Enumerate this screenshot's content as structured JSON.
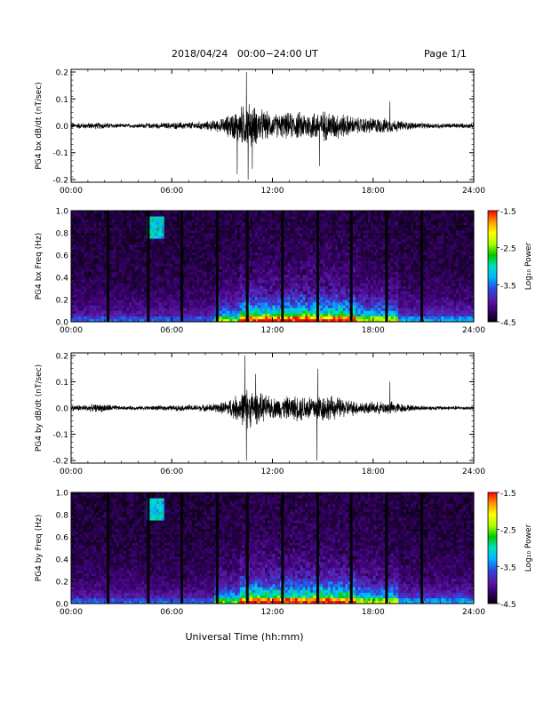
{
  "header": {
    "title": "2018/04/24   00:00−24:00 UT",
    "page": "Page 1/1"
  },
  "xlabel": "Universal Time (hh:mm)",
  "colors": {
    "trace": "#000000",
    "colormap": [
      "#000000",
      "#3a006e",
      "#5a1aa8",
      "#2a4be0",
      "#00b4ff",
      "#00e0c0",
      "#00c800",
      "#aaff00",
      "#ffff00",
      "#ff9900",
      "#ff0000"
    ]
  },
  "chart_data": [
    {
      "type": "line",
      "ylabel": "PG4 bx dB/dt (nT/sec)",
      "xlim": [
        0,
        24
      ],
      "ylim": [
        -0.21,
        0.21
      ],
      "yticks": [
        "-0.2",
        "-0.1",
        "0.0",
        "0.1",
        "0.2"
      ],
      "ytick_values": [
        -0.2,
        -0.1,
        0.0,
        0.1,
        0.2
      ],
      "xticks": [
        "00:00",
        "06:00",
        "12:00",
        "18:00",
        "24:00"
      ],
      "envelope": {
        "hours": [
          0,
          2,
          3,
          5,
          8,
          9,
          10,
          10.5,
          11,
          12,
          13,
          14,
          15,
          16,
          17,
          18,
          19,
          20,
          21,
          24
        ],
        "amplitude": [
          0.012,
          0.014,
          0.008,
          0.012,
          0.018,
          0.03,
          0.075,
          0.1,
          0.08,
          0.05,
          0.055,
          0.06,
          0.065,
          0.055,
          0.035,
          0.035,
          0.03,
          0.018,
          0.012,
          0.01
        ]
      },
      "spikes": [
        {
          "hour": 10.45,
          "value": 0.2
        },
        {
          "hour": 10.55,
          "value": -0.2
        },
        {
          "hour": 9.9,
          "value": -0.18
        },
        {
          "hour": 10.8,
          "value": -0.16
        },
        {
          "hour": 14.8,
          "value": -0.15
        },
        {
          "hour": 19.0,
          "value": 0.09
        }
      ]
    },
    {
      "type": "heatmap",
      "ylabel": "PG4 bx Freq (Hz)",
      "xlim": [
        0,
        24
      ],
      "ylim": [
        0,
        1.0
      ],
      "yticks": [
        "0.0",
        "0.2",
        "0.4",
        "0.6",
        "0.8",
        "1.0"
      ],
      "ytick_values": [
        0,
        0.2,
        0.4,
        0.6,
        0.8,
        1.0
      ],
      "xticks": [
        "00:00",
        "06:00",
        "12:00",
        "18:00",
        "24:00"
      ],
      "colorbar": {
        "label": "Log₁₀ Power",
        "range": [
          -4.5,
          -1.5
        ],
        "ticks": [
          "-1.5",
          "-2.5",
          "-3.5",
          "-4.5"
        ],
        "tick_values": [
          -1.5,
          -2.5,
          -3.5,
          -4.5
        ]
      },
      "vertical_lines_hours": [
        2.2,
        4.6,
        6.6,
        8.7,
        10.5,
        12.6,
        14.7,
        16.7,
        18.8,
        20.9
      ]
    },
    {
      "type": "line",
      "ylabel": "PG4 by dB/dt (nT/sec)",
      "xlim": [
        0,
        24
      ],
      "ylim": [
        -0.21,
        0.21
      ],
      "yticks": [
        "-0.2",
        "-0.1",
        "0.0",
        "0.1",
        "0.2"
      ],
      "ytick_values": [
        -0.2,
        -0.1,
        0.0,
        0.1,
        0.2
      ],
      "xticks": [
        "00:00",
        "06:00",
        "12:00",
        "18:00",
        "24:00"
      ],
      "envelope": {
        "hours": [
          0,
          2,
          3,
          5,
          8,
          9,
          10,
          10.5,
          11,
          12,
          13,
          14,
          15,
          16,
          17,
          18,
          19,
          20,
          21,
          24
        ],
        "amplitude": [
          0.012,
          0.018,
          0.008,
          0.01,
          0.015,
          0.025,
          0.06,
          0.09,
          0.07,
          0.045,
          0.05,
          0.06,
          0.06,
          0.045,
          0.03,
          0.025,
          0.03,
          0.015,
          0.01,
          0.008
        ]
      },
      "spikes": [
        {
          "hour": 10.35,
          "value": 0.2
        },
        {
          "hour": 10.45,
          "value": -0.2
        },
        {
          "hour": 11.0,
          "value": 0.13
        },
        {
          "hour": 14.65,
          "value": -0.2
        },
        {
          "hour": 14.7,
          "value": 0.15
        },
        {
          "hour": 19.0,
          "value": 0.1
        }
      ]
    },
    {
      "type": "heatmap",
      "ylabel": "PG4 by Freq (Hz)",
      "xlim": [
        0,
        24
      ],
      "ylim": [
        0,
        1.0
      ],
      "yticks": [
        "0.0",
        "0.2",
        "0.4",
        "0.6",
        "0.8",
        "1.0"
      ],
      "ytick_values": [
        0,
        0.2,
        0.4,
        0.6,
        0.8,
        1.0
      ],
      "xticks": [
        "00:00",
        "06:00",
        "12:00",
        "18:00",
        "24:00"
      ],
      "colorbar": {
        "label": "Log₁₀ Power",
        "range": [
          -4.5,
          -1.5
        ],
        "ticks": [
          "-1.5",
          "-2.5",
          "-3.5",
          "-4.5"
        ],
        "tick_values": [
          -1.5,
          -2.5,
          -3.5,
          -4.5
        ]
      },
      "vertical_lines_hours": [
        2.2,
        4.6,
        6.6,
        8.7,
        10.5,
        12.6,
        14.7,
        16.7,
        18.8,
        20.9
      ]
    }
  ]
}
